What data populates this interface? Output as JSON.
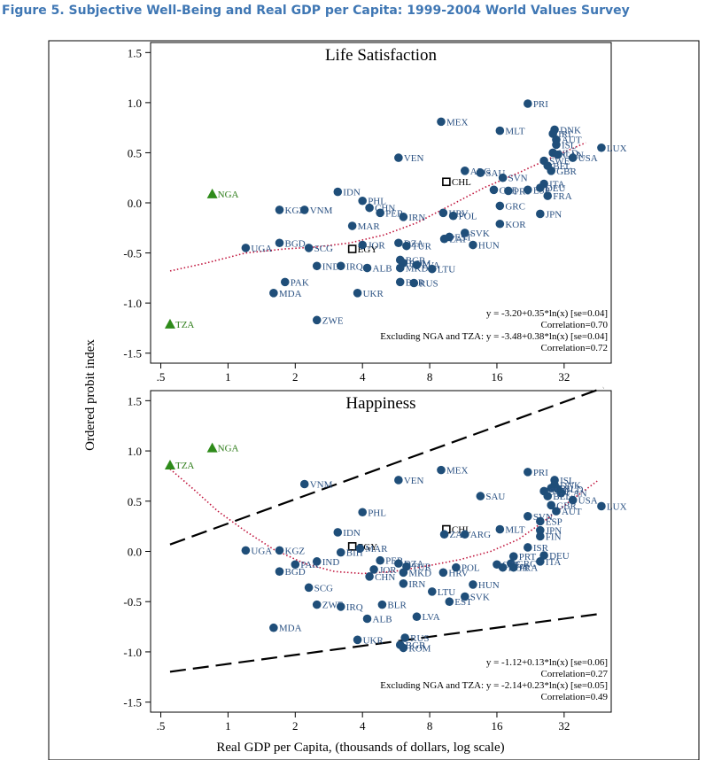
{
  "figure_title": "Figure 5. Subjective Well-Being and Real GDP per Capita: 1999-2004 World Values Survey",
  "colors": {
    "title": "#3f77b4",
    "marker": "#1f4e79",
    "label": "#2b5283",
    "green": "#2e8b1a",
    "fit_line": "#000000",
    "lowess": "#c0143c"
  },
  "chart_data": [
    {
      "type": "scatter",
      "title": "Life Satisfaction",
      "ylabel": "Ordered probit index",
      "xlabel": "Real GDP per Capita, (thousands of dollars, log scale)",
      "x_scale": "log2",
      "x_ticks": [
        0.5,
        1,
        2,
        4,
        8,
        16,
        32
      ],
      "x_tick_labels": [
        ".5",
        "1",
        "2",
        "4",
        "8",
        "16",
        "32"
      ],
      "y_ticks": [
        -1.5,
        -1.0,
        -0.5,
        0.0,
        0.5,
        1.0,
        1.5
      ],
      "y_tick_labels": [
        "-1.5",
        "-1.0",
        "-0.5",
        "0.0",
        "0.5",
        "1.0",
        "1.5"
      ],
      "ylim": [
        -1.6,
        1.6
      ],
      "xlim": [
        0.45,
        52
      ],
      "fit_line": {
        "intercept": -3.2,
        "slope": 0.35,
        "x_range": [
          0.55,
          48
        ]
      },
      "lowess": [
        [
          0.55,
          -0.68
        ],
        [
          0.8,
          -0.6
        ],
        [
          1.2,
          -0.5
        ],
        [
          1.8,
          -0.46
        ],
        [
          2.5,
          -0.44
        ],
        [
          3.5,
          -0.4
        ],
        [
          5,
          -0.32
        ],
        [
          7,
          -0.2
        ],
        [
          10,
          -0.02
        ],
        [
          14,
          0.15
        ],
        [
          20,
          0.3
        ],
        [
          28,
          0.45
        ],
        [
          40,
          0.6
        ]
      ],
      "annotations": [
        "y = -3.20+0.35*ln(x) [se=0.04]",
        "Correlation=0.70",
        "Excluding NGA and TZA: y = -3.48+0.38*ln(x) [se=0.04]",
        "Correlation=0.72"
      ],
      "points": [
        {
          "label": "PRI",
          "x": 22,
          "y": 0.99,
          "style": "circle"
        },
        {
          "label": "MEX",
          "x": 9,
          "y": 0.81,
          "style": "circle"
        },
        {
          "label": "MLT",
          "x": 16.5,
          "y": 0.72,
          "style": "circle"
        },
        {
          "label": "DNK",
          "x": 29,
          "y": 0.73,
          "style": "circle"
        },
        {
          "label": "IRL",
          "x": 28.5,
          "y": 0.69,
          "style": "circle"
        },
        {
          "label": "AUT",
          "x": 29.5,
          "y": 0.63,
          "style": "circle"
        },
        {
          "label": "ISL",
          "x": 29.5,
          "y": 0.58,
          "style": "circle"
        },
        {
          "label": "NLD",
          "x": 28.5,
          "y": 0.5,
          "style": "circle"
        },
        {
          "label": "CAN",
          "x": 30,
          "y": 0.48,
          "style": "circle"
        },
        {
          "label": "USA",
          "x": 35,
          "y": 0.45,
          "style": "circle"
        },
        {
          "label": "SWE",
          "x": 26,
          "y": 0.42,
          "style": "circle"
        },
        {
          "label": "BEL",
          "x": 27,
          "y": 0.37,
          "style": "circle"
        },
        {
          "label": "GBR",
          "x": 28,
          "y": 0.32,
          "style": "circle"
        },
        {
          "label": "LUX",
          "x": 47,
          "y": 0.55,
          "style": "circle"
        },
        {
          "label": "VEN",
          "x": 5.8,
          "y": 0.45,
          "style": "circle"
        },
        {
          "label": "ARG",
          "x": 11.5,
          "y": 0.32,
          "style": "circle"
        },
        {
          "label": "SAU",
          "x": 13.5,
          "y": 0.3,
          "style": "circle"
        },
        {
          "label": "SVN",
          "x": 17,
          "y": 0.25,
          "style": "circle"
        },
        {
          "label": "CHL",
          "x": 9.5,
          "y": 0.21,
          "style": "square"
        },
        {
          "label": "ITA",
          "x": 26,
          "y": 0.19,
          "style": "circle"
        },
        {
          "label": "CZE",
          "x": 15.5,
          "y": 0.13,
          "style": "circle"
        },
        {
          "label": "PRT",
          "x": 18,
          "y": 0.12,
          "style": "circle"
        },
        {
          "label": "ESP",
          "x": 22,
          "y": 0.13,
          "style": "circle"
        },
        {
          "label": "DEU",
          "x": 25,
          "y": 0.15,
          "style": "circle"
        },
        {
          "label": "FRA",
          "x": 27,
          "y": 0.07,
          "style": "circle"
        },
        {
          "label": "IDN",
          "x": 3.1,
          "y": 0.11,
          "style": "circle"
        },
        {
          "label": "NGA",
          "x": 0.85,
          "y": 0.09,
          "style": "triangle_green"
        },
        {
          "label": "PHL",
          "x": 4.0,
          "y": 0.02,
          "style": "circle"
        },
        {
          "label": "CHN",
          "x": 4.3,
          "y": -0.05,
          "style": "circle"
        },
        {
          "label": "PER",
          "x": 4.8,
          "y": -0.1,
          "style": "circle"
        },
        {
          "label": "KGZ",
          "x": 1.7,
          "y": -0.07,
          "style": "circle"
        },
        {
          "label": "VNM",
          "x": 2.2,
          "y": -0.07,
          "style": "circle"
        },
        {
          "label": "IRN",
          "x": 6.1,
          "y": -0.14,
          "style": "circle"
        },
        {
          "label": "HRV",
          "x": 9.2,
          "y": -0.1,
          "style": "circle"
        },
        {
          "label": "POL",
          "x": 10.2,
          "y": -0.13,
          "style": "circle"
        },
        {
          "label": "GRC",
          "x": 16.5,
          "y": -0.03,
          "style": "circle"
        },
        {
          "label": "JPN",
          "x": 25,
          "y": -0.11,
          "style": "circle"
        },
        {
          "label": "KOR",
          "x": 16.5,
          "y": -0.21,
          "style": "circle"
        },
        {
          "label": "MAR",
          "x": 3.6,
          "y": -0.23,
          "style": "circle"
        },
        {
          "label": "SVK",
          "x": 11.5,
          "y": -0.3,
          "style": "circle"
        },
        {
          "label": "EST",
          "x": 9.8,
          "y": -0.34,
          "style": "circle"
        },
        {
          "label": "ZAF",
          "x": 9.3,
          "y": -0.36,
          "style": "circle"
        },
        {
          "label": "HUN",
          "x": 12.5,
          "y": -0.42,
          "style": "circle"
        },
        {
          "label": "BGD",
          "x": 1.7,
          "y": -0.4,
          "style": "circle"
        },
        {
          "label": "UGA",
          "x": 1.2,
          "y": -0.45,
          "style": "circle"
        },
        {
          "label": "SCG",
          "x": 2.3,
          "y": -0.45,
          "style": "circle"
        },
        {
          "label": "EGY",
          "x": 3.6,
          "y": -0.46,
          "style": "square"
        },
        {
          "label": "DZA",
          "x": 5.8,
          "y": -0.4,
          "style": "circle"
        },
        {
          "label": "TUR",
          "x": 6.3,
          "y": -0.43,
          "style": "circle"
        },
        {
          "label": "JOR",
          "x": 4.0,
          "y": -0.42,
          "style": "circle"
        },
        {
          "label": "BGR",
          "x": 5.9,
          "y": -0.57,
          "style": "circle"
        },
        {
          "label": "ROM",
          "x": 6.1,
          "y": -0.6,
          "style": "circle"
        },
        {
          "label": "MKD",
          "x": 5.9,
          "y": -0.65,
          "style": "circle"
        },
        {
          "label": "LVA",
          "x": 7.0,
          "y": -0.62,
          "style": "circle"
        },
        {
          "label": "LTU",
          "x": 8.2,
          "y": -0.66,
          "style": "circle"
        },
        {
          "label": "IND",
          "x": 2.5,
          "y": -0.63,
          "style": "circle"
        },
        {
          "label": "IRQ",
          "x": 3.2,
          "y": -0.63,
          "style": "circle"
        },
        {
          "label": "ALB",
          "x": 4.2,
          "y": -0.65,
          "style": "circle"
        },
        {
          "label": "PAK",
          "x": 1.8,
          "y": -0.79,
          "style": "circle"
        },
        {
          "label": "BLR",
          "x": 5.9,
          "y": -0.79,
          "style": "circle"
        },
        {
          "label": "RUS",
          "x": 6.8,
          "y": -0.8,
          "style": "circle"
        },
        {
          "label": "MDA",
          "x": 1.6,
          "y": -0.9,
          "style": "circle"
        },
        {
          "label": "UKR",
          "x": 3.8,
          "y": -0.9,
          "style": "circle"
        },
        {
          "label": "ZWE",
          "x": 2.5,
          "y": -1.17,
          "style": "circle"
        },
        {
          "label": "TZA",
          "x": 0.55,
          "y": -1.21,
          "style": "triangle_green"
        }
      ]
    },
    {
      "type": "scatter",
      "title": "Happiness",
      "ylabel": "Ordered probit index",
      "xlabel": "Real GDP per Capita, (thousands of dollars, log scale)",
      "x_scale": "log2",
      "x_ticks": [
        0.5,
        1,
        2,
        4,
        8,
        16,
        32
      ],
      "x_tick_labels": [
        ".5",
        "1",
        "2",
        "4",
        "8",
        "16",
        "32"
      ],
      "y_ticks": [
        -1.5,
        -1.0,
        -0.5,
        0.0,
        0.5,
        1.0,
        1.5
      ],
      "y_tick_labels": [
        "-1.5",
        "-1.0",
        "-0.5",
        "0.0",
        "0.5",
        "1.0",
        "1.5"
      ],
      "ylim": [
        -1.6,
        1.6
      ],
      "xlim": [
        0.45,
        52
      ],
      "fit_line": {
        "intercept": -1.12,
        "slope": 0.13,
        "x_range": [
          0.55,
          48
        ]
      },
      "lowess": [
        [
          0.55,
          0.82
        ],
        [
          0.7,
          0.62
        ],
        [
          0.9,
          0.4
        ],
        [
          1.2,
          0.2
        ],
        [
          1.6,
          0.02
        ],
        [
          2.2,
          -0.12
        ],
        [
          3,
          -0.2
        ],
        [
          4,
          -0.22
        ],
        [
          5.5,
          -0.2
        ],
        [
          8,
          -0.14
        ],
        [
          11,
          -0.08
        ],
        [
          15,
          0.0
        ],
        [
          20,
          0.12
        ],
        [
          26,
          0.3
        ],
        [
          34,
          0.5
        ],
        [
          45,
          0.7
        ]
      ],
      "annotations": [
        "y = -1.12+0.13*ln(x) [se=0.06]",
        "Correlation=0.27",
        "Excluding NGA and TZA: y = -2.14+0.23*ln(x) [se=0.05]",
        "Correlation=0.49"
      ],
      "points": [
        {
          "label": "NGA",
          "x": 0.85,
          "y": 1.03,
          "style": "triangle_green"
        },
        {
          "label": "TZA",
          "x": 0.55,
          "y": 0.86,
          "style": "triangle_green"
        },
        {
          "label": "VNM",
          "x": 2.2,
          "y": 0.67,
          "style": "circle"
        },
        {
          "label": "VEN",
          "x": 5.8,
          "y": 0.71,
          "style": "circle"
        },
        {
          "label": "MEX",
          "x": 9,
          "y": 0.81,
          "style": "circle"
        },
        {
          "label": "PRI",
          "x": 22,
          "y": 0.79,
          "style": "circle"
        },
        {
          "label": "ISL",
          "x": 29,
          "y": 0.71,
          "style": "circle"
        },
        {
          "label": "DNK",
          "x": 29,
          "y": 0.66,
          "style": "circle"
        },
        {
          "label": "IRL",
          "x": 28,
          "y": 0.63,
          "style": "circle"
        },
        {
          "label": "NLD",
          "x": 30,
          "y": 0.62,
          "style": "circle"
        },
        {
          "label": "SWE",
          "x": 26,
          "y": 0.6,
          "style": "circle"
        },
        {
          "label": "CAN",
          "x": 31,
          "y": 0.58,
          "style": "circle"
        },
        {
          "label": "BEL",
          "x": 27,
          "y": 0.55,
          "style": "circle"
        },
        {
          "label": "USA",
          "x": 35,
          "y": 0.51,
          "style": "circle"
        },
        {
          "label": "SAU",
          "x": 13.5,
          "y": 0.55,
          "style": "circle"
        },
        {
          "label": "GBR",
          "x": 28,
          "y": 0.46,
          "style": "circle"
        },
        {
          "label": "LUX",
          "x": 47,
          "y": 0.45,
          "style": "circle"
        },
        {
          "label": "AUT",
          "x": 29.5,
          "y": 0.4,
          "style": "circle"
        },
        {
          "label": "PHL",
          "x": 4.0,
          "y": 0.39,
          "style": "circle"
        },
        {
          "label": "SVN",
          "x": 22,
          "y": 0.35,
          "style": "circle"
        },
        {
          "label": "ESP",
          "x": 25,
          "y": 0.3,
          "style": "circle"
        },
        {
          "label": "IDN",
          "x": 3.1,
          "y": 0.19,
          "style": "circle"
        },
        {
          "label": "CHL",
          "x": 9.5,
          "y": 0.22,
          "style": "square"
        },
        {
          "label": "ZAF",
          "x": 9.3,
          "y": 0.17,
          "style": "circle"
        },
        {
          "label": "ARG",
          "x": 11.5,
          "y": 0.17,
          "style": "circle"
        },
        {
          "label": "MLT",
          "x": 16.5,
          "y": 0.22,
          "style": "circle"
        },
        {
          "label": "JPN",
          "x": 25,
          "y": 0.21,
          "style": "circle"
        },
        {
          "label": "FIN",
          "x": 25,
          "y": 0.15,
          "style": "circle"
        },
        {
          "label": "EGY",
          "x": 3.6,
          "y": 0.05,
          "style": "square"
        },
        {
          "label": "MAR",
          "x": 3.9,
          "y": 0.03,
          "style": "circle"
        },
        {
          "label": "UGA",
          "x": 1.2,
          "y": 0.01,
          "style": "circle"
        },
        {
          "label": "KGZ",
          "x": 1.7,
          "y": 0.01,
          "style": "circle"
        },
        {
          "label": "BIH",
          "x": 3.2,
          "y": -0.01,
          "style": "circle"
        },
        {
          "label": "ISR",
          "x": 22,
          "y": 0.04,
          "style": "circle"
        },
        {
          "label": "DEU",
          "x": 26,
          "y": -0.04,
          "style": "circle"
        },
        {
          "label": "PRT",
          "x": 19,
          "y": -0.05,
          "style": "circle"
        },
        {
          "label": "ITA",
          "x": 25,
          "y": -0.1,
          "style": "circle"
        },
        {
          "label": "GRC",
          "x": 18.5,
          "y": -0.12,
          "style": "circle"
        },
        {
          "label": "CZE",
          "x": 16,
          "y": -0.13,
          "style": "circle"
        },
        {
          "label": "KOR",
          "x": 17,
          "y": -0.16,
          "style": "circle"
        },
        {
          "label": "FRA",
          "x": 19,
          "y": -0.16,
          "style": "circle"
        },
        {
          "label": "IND",
          "x": 2.5,
          "y": -0.1,
          "style": "circle"
        },
        {
          "label": "PAK",
          "x": 2.0,
          "y": -0.13,
          "style": "circle"
        },
        {
          "label": "BGD",
          "x": 1.7,
          "y": -0.2,
          "style": "circle"
        },
        {
          "label": "PER",
          "x": 4.8,
          "y": -0.09,
          "style": "circle"
        },
        {
          "label": "DZA",
          "x": 5.8,
          "y": -0.12,
          "style": "circle"
        },
        {
          "label": "TUR",
          "x": 6.3,
          "y": -0.15,
          "style": "circle"
        },
        {
          "label": "JOR",
          "x": 4.5,
          "y": -0.18,
          "style": "circle"
        },
        {
          "label": "MKD",
          "x": 6.1,
          "y": -0.21,
          "style": "circle"
        },
        {
          "label": "CHN",
          "x": 4.3,
          "y": -0.25,
          "style": "circle"
        },
        {
          "label": "HRV",
          "x": 9.2,
          "y": -0.21,
          "style": "circle"
        },
        {
          "label": "POL",
          "x": 10.5,
          "y": -0.16,
          "style": "circle"
        },
        {
          "label": "IRN",
          "x": 6.1,
          "y": -0.32,
          "style": "circle"
        },
        {
          "label": "SCG",
          "x": 2.3,
          "y": -0.36,
          "style": "circle"
        },
        {
          "label": "HUN",
          "x": 12.5,
          "y": -0.33,
          "style": "circle"
        },
        {
          "label": "LTU",
          "x": 8.2,
          "y": -0.4,
          "style": "circle"
        },
        {
          "label": "SVK",
          "x": 11.5,
          "y": -0.45,
          "style": "circle"
        },
        {
          "label": "EST",
          "x": 9.8,
          "y": -0.5,
          "style": "circle"
        },
        {
          "label": "ZWE",
          "x": 2.5,
          "y": -0.53,
          "style": "circle"
        },
        {
          "label": "IRQ",
          "x": 3.2,
          "y": -0.55,
          "style": "circle"
        },
        {
          "label": "BLR",
          "x": 4.9,
          "y": -0.53,
          "style": "circle"
        },
        {
          "label": "ALB",
          "x": 4.2,
          "y": -0.67,
          "style": "circle"
        },
        {
          "label": "LVA",
          "x": 7.0,
          "y": -0.65,
          "style": "circle"
        },
        {
          "label": "MDA",
          "x": 1.6,
          "y": -0.76,
          "style": "circle"
        },
        {
          "label": "UKR",
          "x": 3.8,
          "y": -0.88,
          "style": "circle"
        },
        {
          "label": "RUS",
          "x": 6.2,
          "y": -0.86,
          "style": "circle"
        },
        {
          "label": "BGR",
          "x": 5.9,
          "y": -0.93,
          "style": "circle"
        },
        {
          "label": "ROM",
          "x": 6.1,
          "y": -0.96,
          "style": "circle"
        }
      ]
    }
  ]
}
